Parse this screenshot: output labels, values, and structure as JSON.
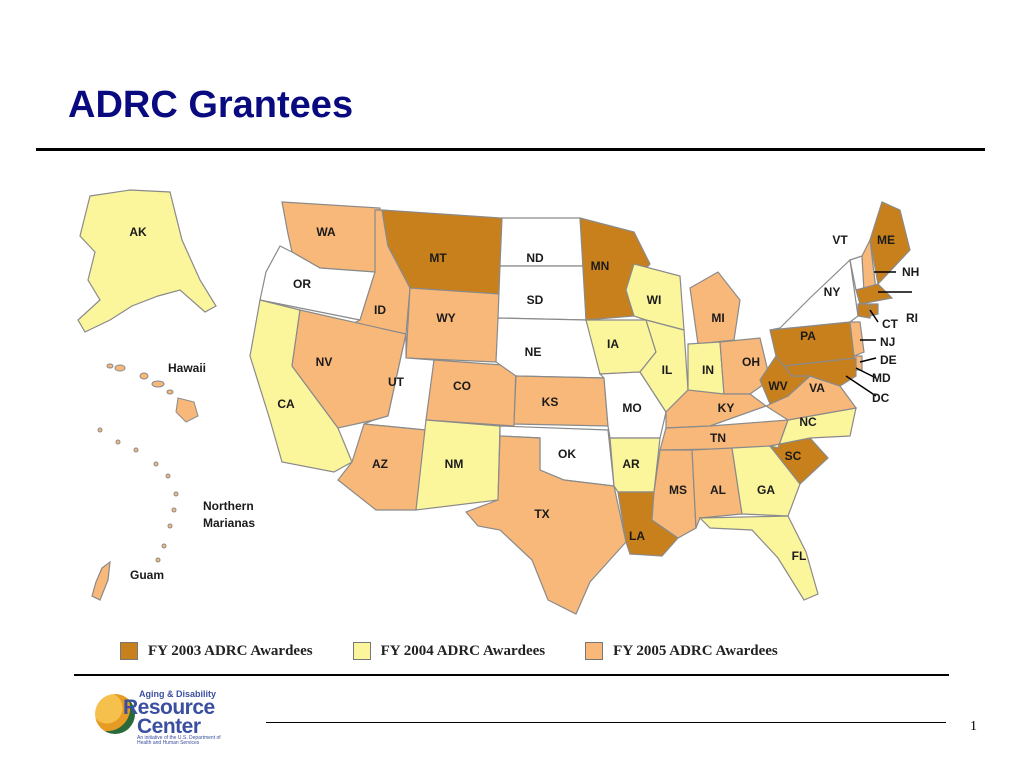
{
  "slide": {
    "title": "ADRC Grantees",
    "page_number": "1"
  },
  "colors": {
    "fy2003": "#c8801c",
    "fy2004": "#fbf59c",
    "fy2005": "#f8b87a",
    "none": "#ffffff",
    "title": "#0a0a80"
  },
  "map": {
    "states": {
      "AK": "AK",
      "WA": "WA",
      "OR": "OR",
      "CA": "CA",
      "ID": "ID",
      "NV": "NV",
      "MT": "MT",
      "WY": "WY",
      "UT": "UT",
      "CO": "CO",
      "AZ": "AZ",
      "NM": "NM",
      "ND": "ND",
      "SD": "SD",
      "NE": "NE",
      "KS": "KS",
      "OK": "OK",
      "TX": "TX",
      "MN": "MN",
      "IA": "IA",
      "MO": "MO",
      "AR": "AR",
      "LA": "LA",
      "WI": "WI",
      "IL": "IL",
      "MI": "MI",
      "IN": "IN",
      "OH": "OH",
      "KY": "KY",
      "TN": "TN",
      "MS": "MS",
      "AL": "AL",
      "GA": "GA",
      "FL": "FL",
      "SC": "SC",
      "NC": "NC",
      "VA": "VA",
      "WV": "WV",
      "PA": "PA",
      "NY": "NY",
      "VT": "VT",
      "ME": "ME",
      "NH": "NH",
      "CT": "CT",
      "RI": "RI",
      "NJ": "NJ",
      "DE": "DE",
      "MD": "MD",
      "DC": "DC"
    },
    "territories": {
      "hawaii": "Hawaii",
      "northern_marianas_1": "Northern",
      "northern_marianas_2": "Marianas",
      "guam": "Guam"
    }
  },
  "legend": [
    {
      "label": "FY 2003 ADRC Awardees"
    },
    {
      "label": "FY 2004 ADRC Awardees"
    },
    {
      "label": "FY 2005 ADRC Awardees"
    }
  ]
}
